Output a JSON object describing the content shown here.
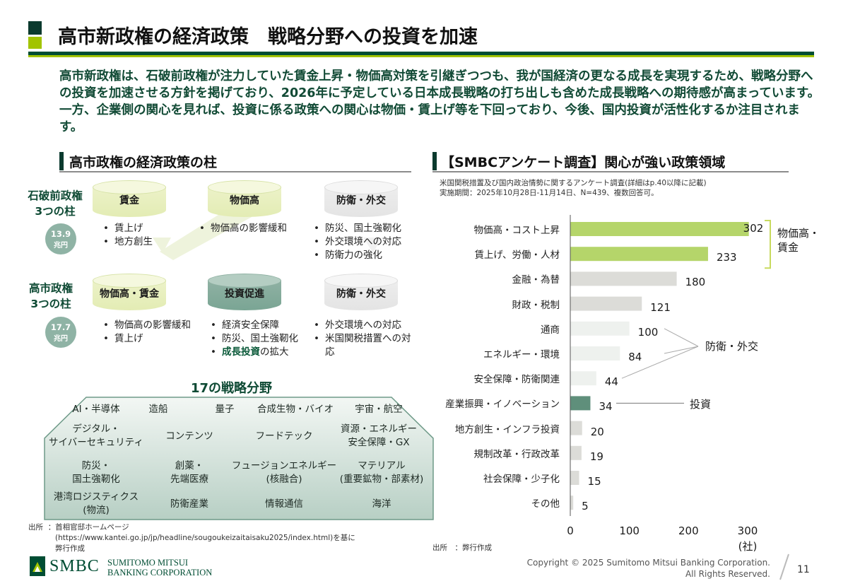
{
  "page": {
    "title": "高市新政権の経済政策　戦略分野への投資を加速",
    "intro": "高市新政権は、石破前政権が注力していた賃金上昇・物価高対策を引継ぎつつも、我が国経済の更なる成長を実現するため、戦略分野への投資を加速させる方針を掲げており、2026年に予定している日本成長戦略の打ち出しも含めた成長戦略への期待感が高まっています。一方、企業側の関心を見れば、投資に係る政策への関心は物価・賃上げ等を下回っており、今後、国内投資が活性化するか注目されます。",
    "page_number": "11"
  },
  "left": {
    "heading": "高市政権の経済政策の柱",
    "ishiba": {
      "label_1": "石破前政権",
      "label_2": "3つの柱",
      "badge_value": "13.9",
      "badge_unit": "兆円",
      "pillars": [
        {
          "name": "賃金",
          "bullets": [
            "賃上げ",
            "地方創生"
          ]
        },
        {
          "name": "物価高",
          "bullets": [
            "物価高の影響緩和"
          ]
        },
        {
          "name": "防衛・外交",
          "bullets": [
            "防災、国土強靭化",
            "外交環境への対応",
            "防衛力の強化"
          ]
        }
      ]
    },
    "takaichi": {
      "label_1": "高市政権",
      "label_2": "3つの柱",
      "badge_value": "17.7",
      "badge_unit": "兆円",
      "pillars": [
        {
          "name": "物価高・賃金",
          "bullets": [
            "物価高の影響緩和",
            "賃上げ"
          ]
        },
        {
          "name": "投資促進",
          "bullets": [
            "経済安全保障",
            "防災、国土強靭化"
          ],
          "hl_bullet_strong": "成長投資",
          "hl_bullet_rest": "の拡大"
        },
        {
          "name": "防衛・外交",
          "bullets": [
            "外交環境への対応",
            "米国関税措置への対応"
          ]
        }
      ]
    },
    "fields": {
      "title": "17の戦略分野",
      "items": [
        "AI・半導体",
        "造船",
        "量子",
        "合成生物・バイオ",
        "宇宙・航空",
        "デジタル・",
        "サイバーセキュリティ",
        "コンテンツ",
        "フードテック",
        "資源・エネルギー",
        "安全保障・GX",
        "防災・",
        "国土強靭化",
        "創薬・",
        "先端医療",
        "フュージョンエネルギー",
        "(核融合)",
        "マテリアル",
        "(重要鉱物・部素材)",
        "港湾ロジスティクス",
        "(物流)",
        "防衛産業",
        "情報通信",
        "海洋"
      ]
    },
    "source": {
      "label": "出所",
      "line1": "：首相官邸ホームページ",
      "line2": "(https://www.kantei.go.jp/jp/headline/sougoukeizaitaisaku2025/index.html)を基に",
      "line3": "弊行作成"
    }
  },
  "right": {
    "heading": "【SMBCアンケート調査】関心が強い政策領域",
    "note1": "米国関税措置及び国内政治情勢に関するアンケート調査(詳細はp.40以降に記載)",
    "note2": "実施期間：2025年10月28日-11月14日、N=439、複数回答可。",
    "annotations": {
      "price_wage_1": "物価高・",
      "price_wage_2": "賃金",
      "defense": "防衛・外交",
      "investment": "投資"
    },
    "source": "出所　：弊行作成"
  },
  "chart_data": {
    "type": "bar",
    "orientation": "horizontal",
    "title": "【SMBCアンケート調査】関心が強い政策領域",
    "categories": [
      "物価高・コスト上昇",
      "賃上げ、労働・人材",
      "金融・為替",
      "財政・税制",
      "通商",
      "エネルギー・環境",
      "安全保障・防衛関連",
      "産業振興・イノベーション",
      "地方創生・インフラ投資",
      "規制改革・行政改革",
      "社会保障・少子化",
      "その他"
    ],
    "values": [
      302,
      233,
      180,
      121,
      100,
      84,
      44,
      34,
      20,
      19,
      15,
      5
    ],
    "groups": [
      "price_wage",
      "price_wage",
      "other",
      "other",
      "defense",
      "defense",
      "defense",
      "investment",
      "other",
      "other",
      "other",
      "other"
    ],
    "colors": {
      "price_wage": "#b5d56a",
      "defense": "#eef1ee",
      "investment": "#5f8f7b",
      "other": "#dcdcd8"
    },
    "xticks": [
      "0",
      "100",
      "200",
      "300"
    ],
    "xlim": [
      0,
      300
    ],
    "xunit": "(社)"
  },
  "footer": {
    "brand": "SMBC",
    "company_1": "SUMITOMO MITSUI",
    "company_2": "BANKING CORPORATION",
    "copyright_1": "Copyright © 2025 Sumitomo Mitsui Banking Corporation.",
    "copyright_2": "All Rights Reserved."
  }
}
